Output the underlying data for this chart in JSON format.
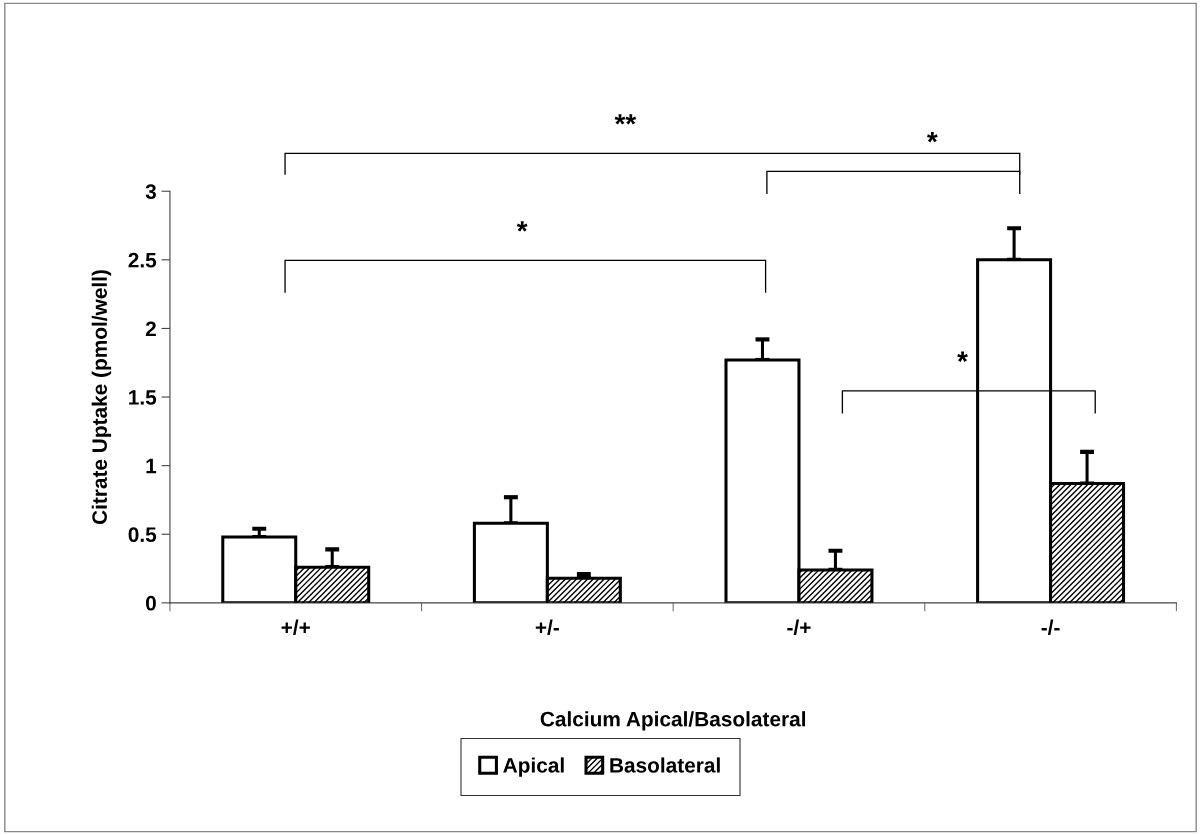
{
  "chart_data": {
    "type": "bar",
    "xlabel": "Calcium Apical/Basolateral",
    "ylabel": "Citrate Uptake (pmol/well)",
    "categories": [
      "+/+",
      "+/-",
      "-/+",
      "-/-"
    ],
    "series": [
      {
        "name": "Apical",
        "color": "#ffffff",
        "values": [
          0.48,
          0.58,
          1.77,
          2.5
        ],
        "errors": [
          0.06,
          0.19,
          0.15,
          0.23
        ]
      },
      {
        "name": "Basolateral",
        "color": "#000000",
        "values": [
          0.26,
          0.18,
          0.24,
          0.87
        ],
        "errors": [
          0.13,
          0.03,
          0.14,
          0.23
        ]
      }
    ],
    "ylim": [
      0,
      3
    ],
    "yticks": [
      0,
      0.5,
      1,
      1.5,
      2,
      2.5,
      3
    ],
    "grid": false,
    "legend": "bottom",
    "annotations": [
      "**",
      "*",
      "*",
      "*"
    ]
  }
}
